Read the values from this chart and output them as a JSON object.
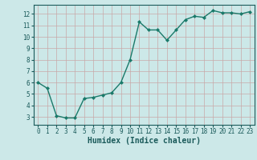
{
  "x": [
    0,
    1,
    2,
    3,
    4,
    5,
    6,
    7,
    8,
    9,
    10,
    11,
    12,
    13,
    14,
    15,
    16,
    17,
    18,
    19,
    20,
    21,
    22,
    23
  ],
  "y": [
    6.0,
    5.5,
    3.1,
    2.9,
    2.9,
    4.6,
    4.7,
    4.9,
    5.1,
    6.0,
    8.0,
    11.3,
    10.6,
    10.6,
    9.7,
    10.6,
    11.5,
    11.8,
    11.7,
    12.3,
    12.1,
    12.1,
    12.0,
    12.2
  ],
  "line_color": "#1a7a6a",
  "marker": "D",
  "marker_size": 2.0,
  "bg_color": "#cce8e8",
  "grid_color": "#b0d0d0",
  "xlabel": "Humidex (Indice chaleur)",
  "xlim": [
    -0.5,
    23.5
  ],
  "ylim": [
    2.3,
    12.8
  ],
  "yticks": [
    3,
    4,
    5,
    6,
    7,
    8,
    9,
    10,
    11,
    12
  ],
  "xticks": [
    0,
    1,
    2,
    3,
    4,
    5,
    6,
    7,
    8,
    9,
    10,
    11,
    12,
    13,
    14,
    15,
    16,
    17,
    18,
    19,
    20,
    21,
    22,
    23
  ],
  "tick_label_size": 5.5,
  "xlabel_size": 7.0,
  "line_width": 1.0
}
